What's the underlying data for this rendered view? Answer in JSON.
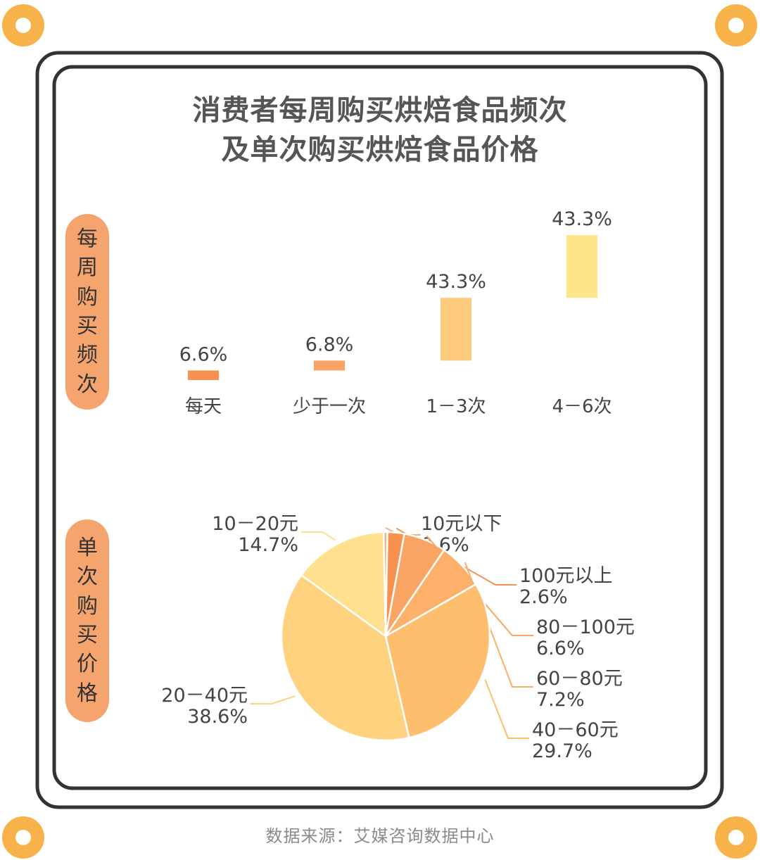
{
  "title_line1": "消费者每周购买烘焙食品频次",
  "title_line2": "及单次购买烘焙食品价格",
  "side_label_top": "每周购买频次",
  "side_label_bottom": "单次购买价格",
  "footer": "数据来源：艾媒咨询数据中心",
  "colors": {
    "frame": "#333333",
    "pill": "#f5a46e",
    "bar_fills": [
      "#f8914e",
      "#f9a463",
      "#fdc97a",
      "#fee58c"
    ],
    "pie_fills": [
      "#f3b27e",
      "#f8914e",
      "#f9a463",
      "#fcb06a",
      "#fdbe6e",
      "#fed27f",
      "#fee08e"
    ]
  },
  "chart_data": [
    {
      "type": "bar",
      "categories": [
        "每天",
        "少于一次",
        "1－3次",
        "4－6次"
      ],
      "values": [
        6.6,
        6.8,
        43.3,
        43.3
      ],
      "labels": [
        "6.6%",
        "6.8%",
        "43.3%",
        "43.3%"
      ],
      "title": "",
      "xlabel": "",
      "ylabel": ""
    },
    {
      "type": "pie",
      "slices": [
        {
          "name": "10元以下",
          "value": 0.6,
          "label": "0.6%"
        },
        {
          "name": "100元以上",
          "value": 2.6,
          "label": "2.6%"
        },
        {
          "name": "80－100元",
          "value": 6.6,
          "label": "6.6%"
        },
        {
          "name": "60－80元",
          "value": 7.2,
          "label": "7.2%"
        },
        {
          "name": "40－60元",
          "value": 29.7,
          "label": "29.7%"
        },
        {
          "name": "20－40元",
          "value": 38.6,
          "label": "38.6%"
        },
        {
          "name": "10－20元",
          "value": 14.7,
          "label": "14.7%"
        }
      ]
    }
  ]
}
